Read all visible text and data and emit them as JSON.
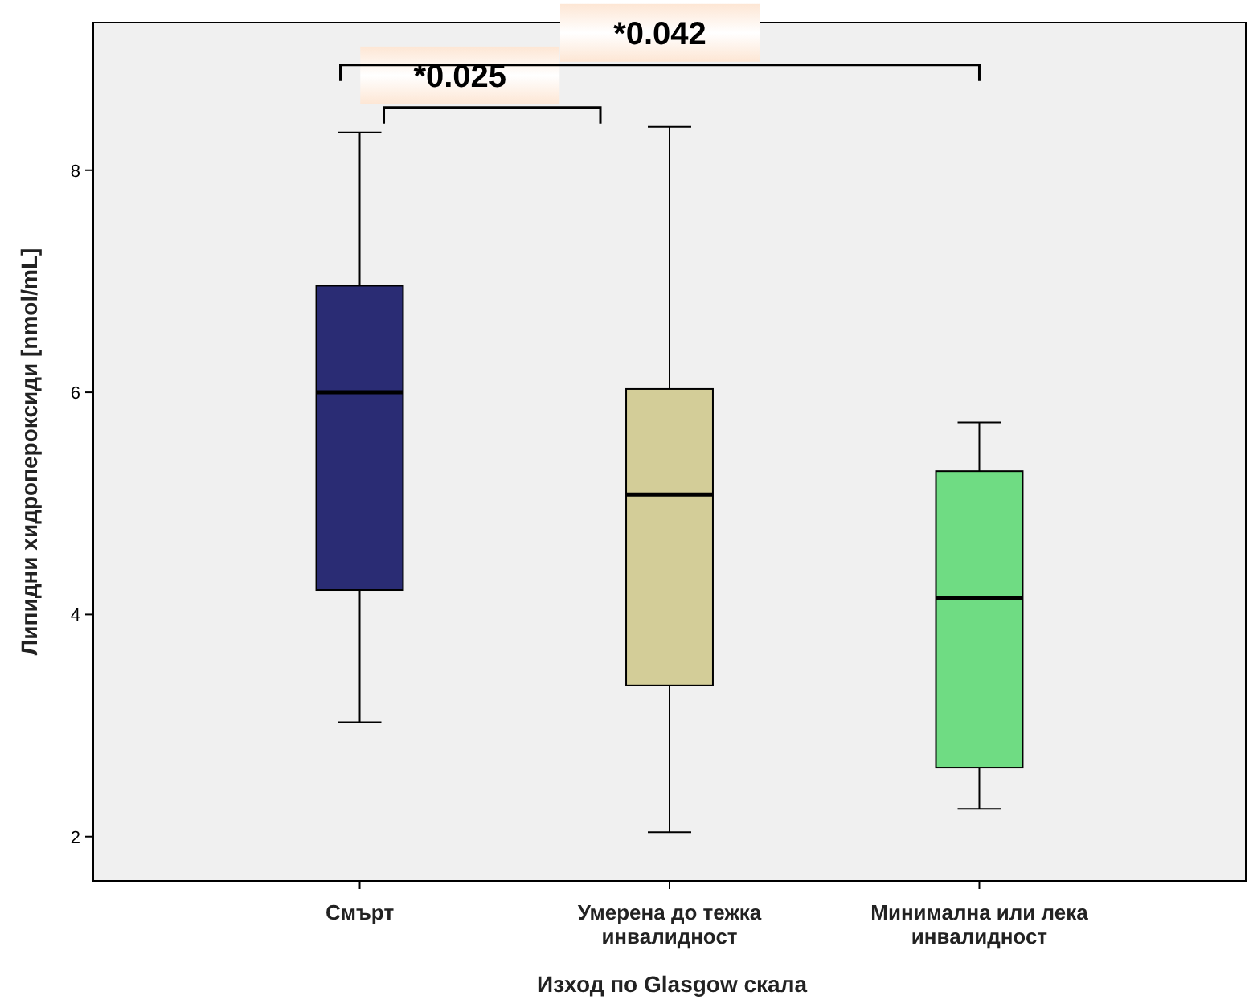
{
  "chart_data": {
    "type": "box",
    "xlabel": "Изход по Glasgow скала",
    "ylabel": "Липидни хидропероксиди [nmol/mL]",
    "categories": [
      "Смърт",
      "Умерена до тежка инвалидност",
      "Минимална или лека инвалидност"
    ],
    "colors": [
      "#2a2c74",
      "#d3cd98",
      "#6fdc83"
    ],
    "boxes": [
      {
        "low": 3.03,
        "q1": 4.22,
        "median": 6.0,
        "q3": 6.96,
        "high": 8.34
      },
      {
        "low": 2.04,
        "q1": 3.36,
        "median": 5.08,
        "q3": 6.03,
        "high": 8.39
      },
      {
        "low": 2.25,
        "q1": 2.62,
        "median": 4.15,
        "q3": 5.29,
        "high": 5.73
      }
    ],
    "ylim": [
      1.6,
      9.33
    ],
    "yticks": [
      2,
      4,
      6,
      8
    ],
    "grid": false,
    "annotations": [
      "*0.025",
      "*0.042"
    ]
  }
}
